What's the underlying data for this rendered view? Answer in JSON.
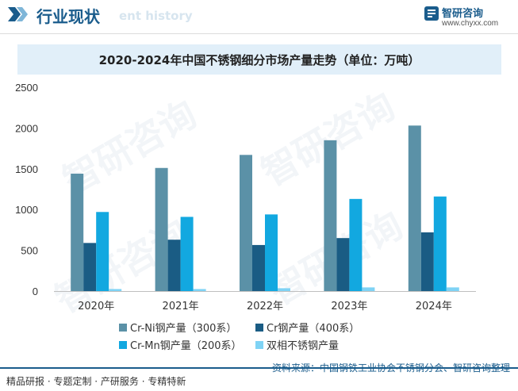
{
  "header": {
    "title": "行业现状",
    "ghost_text": "ent history",
    "brand_name": "智研咨询",
    "brand_url": "www.chyxx.com"
  },
  "watermark": {
    "text": "智研咨询"
  },
  "chart_data": {
    "type": "bar",
    "title": "2020-2024年中国不锈钢细分市场产量走势（单位：万吨）",
    "categories": [
      "2020年",
      "2021年",
      "2022年",
      "2023年",
      "2024年"
    ],
    "series": [
      {
        "name": "Cr-Ni钢产量（300系）",
        "values": [
          1440,
          1510,
          1670,
          1850,
          2030
        ],
        "color": "#5b91a7"
      },
      {
        "name": "Cr钢产量（400系）",
        "values": [
          590,
          630,
          565,
          650,
          720
        ],
        "color": "#1a5c84"
      },
      {
        "name": "Cr-Mn钢产量（200系）",
        "values": [
          970,
          910,
          940,
          1130,
          1160
        ],
        "color": "#12a8e0"
      },
      {
        "name": "双相不锈钢产量",
        "values": [
          25,
          25,
          35,
          45,
          45
        ],
        "color": "#7fd3f5"
      }
    ],
    "ylim": [
      0,
      2500
    ],
    "yticks": [
      "0",
      "500",
      "1000",
      "1500",
      "2000",
      "2500"
    ],
    "ytick_values": [
      0,
      500,
      1000,
      1500,
      2000,
      2500
    ],
    "grid": false,
    "legend_position": "bottom"
  },
  "footer": {
    "left_text": "精品研报 · 专题定制 · 产研服务 · 专精特新",
    "source": "资料来源：中国钢铁工业协会不锈钢分会、智研咨询整理"
  }
}
